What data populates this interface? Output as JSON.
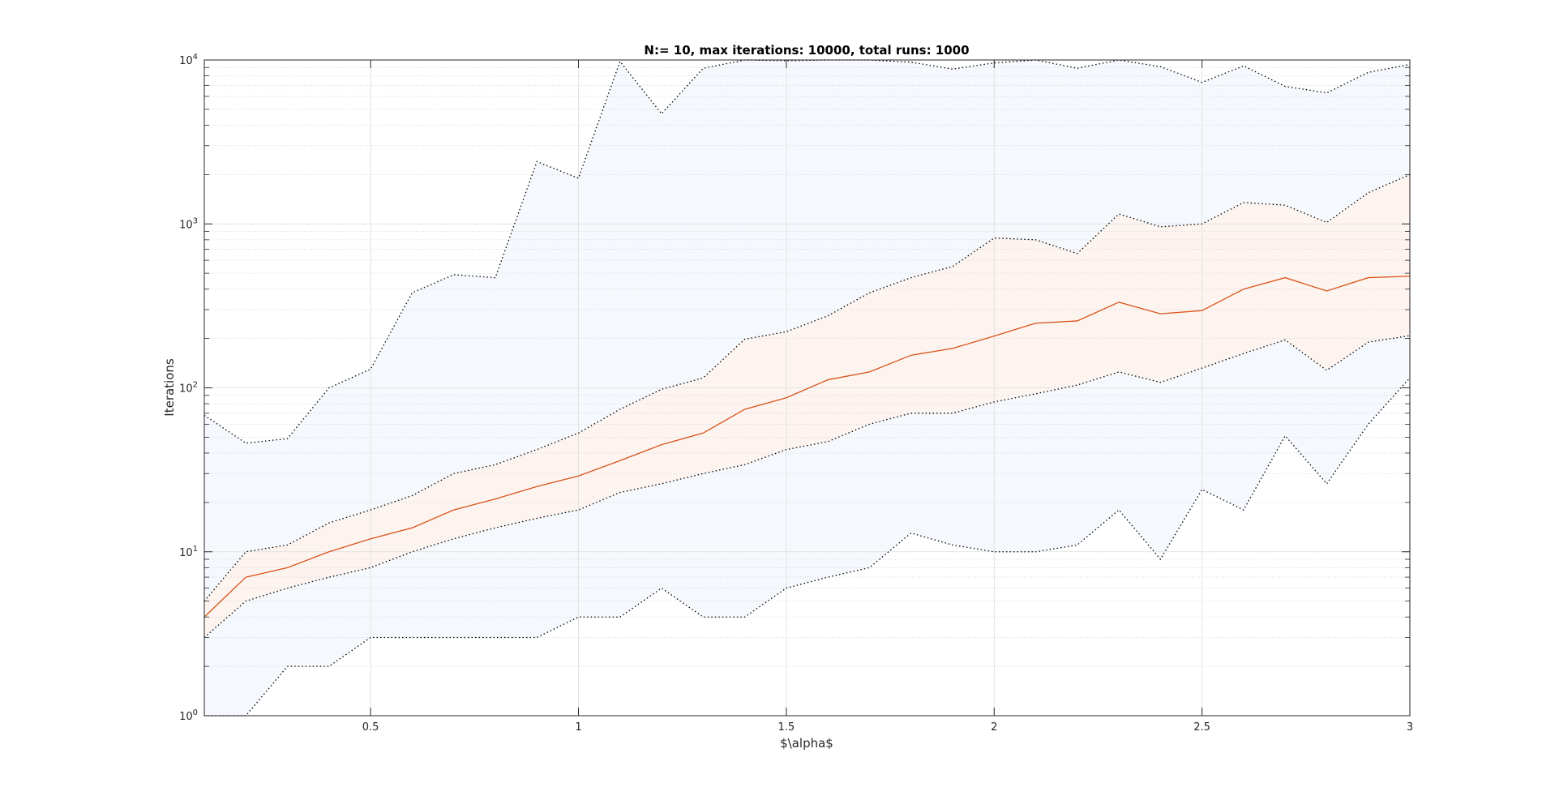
{
  "chart_data": {
    "type": "line",
    "title": "N:= 10, max iterations: 10000, total runs: 1000",
    "xlabel": "$\\alpha$",
    "ylabel": "Iterations",
    "xlim": [
      0.1,
      3
    ],
    "ylim": [
      1,
      10000
    ],
    "yscale": "log",
    "grid": true,
    "x_ticks": [
      0.5,
      1,
      1.5,
      2,
      2.5,
      3
    ],
    "x_tick_labels": [
      "0.5",
      "1",
      "1.5",
      "2",
      "2.5",
      "3"
    ],
    "y_ticks": [
      1,
      10,
      100,
      1000,
      10000
    ],
    "y_tick_labels": [
      {
        "base": "10",
        "exp": "0"
      },
      {
        "base": "10",
        "exp": "1"
      },
      {
        "base": "10",
        "exp": "2"
      },
      {
        "base": "10",
        "exp": "3"
      },
      {
        "base": "10",
        "exp": "4"
      }
    ],
    "colors": {
      "median": "#d95319",
      "outer_fill": "#f5f9fd",
      "inner_fill": "#fdf4f0",
      "bounds": "#000000"
    },
    "x": [
      0.1,
      0.2,
      0.3,
      0.4,
      0.5,
      0.6,
      0.7,
      0.8,
      0.9,
      1.0,
      1.1,
      1.2,
      1.3,
      1.4,
      1.5,
      1.6,
      1.7,
      1.8,
      1.9,
      2.0,
      2.1,
      2.2,
      2.3,
      2.4,
      2.5,
      2.6,
      2.7,
      2.8,
      2.9,
      3.0
    ],
    "series": [
      {
        "values": [
          1,
          1,
          2,
          2,
          3,
          3,
          3,
          3,
          3,
          4,
          4,
          6,
          4,
          4,
          6,
          7,
          8,
          13,
          11,
          10,
          10,
          11,
          18,
          9,
          24,
          18,
          51,
          26,
          60,
          115
        ]
      },
      {
        "values": [
          3,
          5,
          6,
          7,
          8,
          10,
          12,
          14,
          16,
          18,
          23,
          26,
          30,
          34,
          42,
          47,
          60,
          70,
          70,
          82,
          92,
          104,
          125,
          108,
          132,
          162,
          196,
          128,
          190,
          208
        ]
      },
      {
        "values": [
          4,
          7,
          8,
          10,
          12,
          14,
          18,
          21,
          25,
          29,
          36,
          45,
          53,
          74,
          87,
          112,
          125,
          158,
          174,
          207,
          248,
          256,
          333,
          283,
          296,
          400,
          470,
          390,
          470,
          480
        ]
      },
      {
        "values": [
          5,
          10,
          11,
          15,
          18,
          22,
          30,
          34,
          42,
          53,
          74,
          98,
          115,
          198,
          220,
          275,
          380,
          470,
          550,
          820,
          800,
          660,
          1150,
          960,
          1000,
          1350,
          1300,
          1020,
          1550,
          2000
        ]
      },
      {
        "values": [
          68,
          46,
          49,
          100,
          130,
          380,
          490,
          470,
          2400,
          1900,
          9800,
          4700,
          8900,
          10000,
          9900,
          10000,
          10000,
          9700,
          8800,
          9600,
          10000,
          8900,
          10000,
          9100,
          7300,
          9200,
          6900,
          6300,
          8400,
          9400
        ]
      }
    ]
  }
}
